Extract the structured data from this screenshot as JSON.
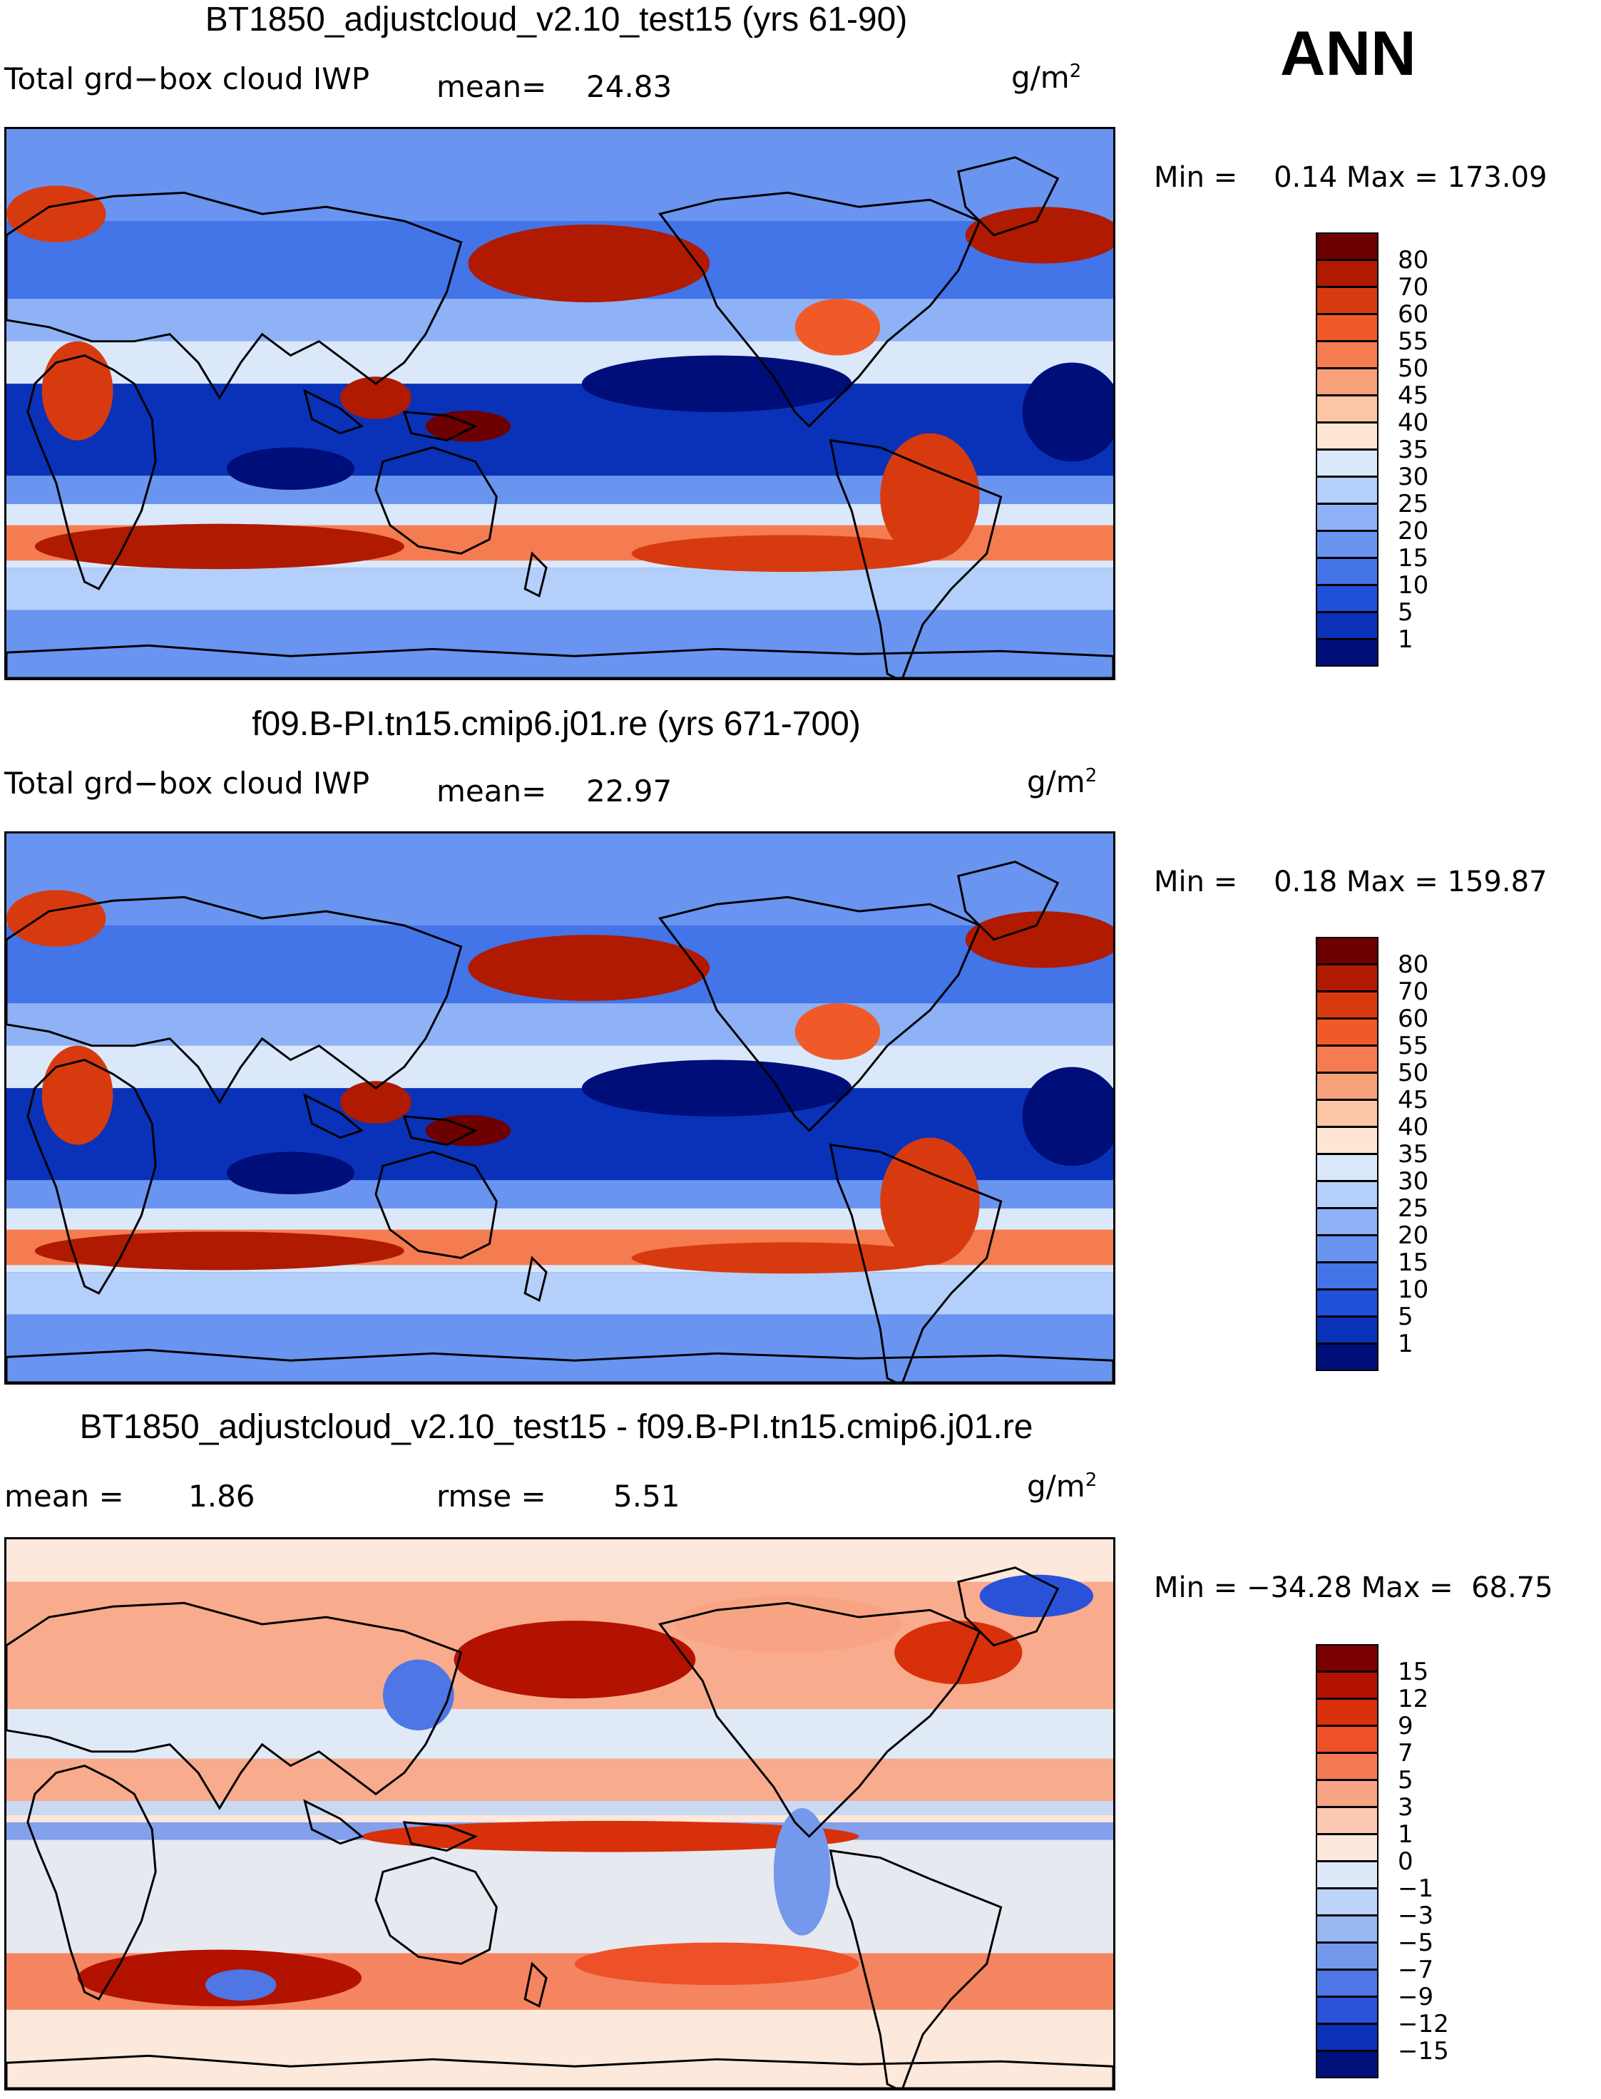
{
  "season": "ANN",
  "colors": {
    "ocean_low": "#0a2fa8",
    "ocean_mid": "#2d62e0",
    "pale": "#fde5d6",
    "warm": "#e8522a",
    "hot": "#8b0a0a",
    "coast": "#000000"
  },
  "icons": [
    "coastline-map"
  ],
  "chart_data": [
    {
      "type": "heatmap",
      "title": "BT1850_adjustcloud_v2.10_test15 (yrs 61-90)",
      "variable": "Total grd−box cloud IWP",
      "mean_label": "mean=",
      "mean_value": "24.83",
      "units": "g/m",
      "units_exp": "2",
      "min_label": "Min =",
      "min_value": "0.14",
      "max_label": "Max =",
      "max_value": "173.09",
      "colorbar": {
        "labels": [
          "80",
          "70",
          "60",
          "55",
          "50",
          "45",
          "40",
          "35",
          "30",
          "25",
          "20",
          "15",
          "10",
          "5",
          "1"
        ],
        "colors": [
          "#6d0000",
          "#b01a00",
          "#d83a10",
          "#f05a28",
          "#f47c50",
          "#f7a27a",
          "#fbc6a6",
          "#fde6d4",
          "#dae8fa",
          "#b4cffa",
          "#8fb2f6",
          "#6994f0",
          "#4374e8",
          "#2050da",
          "#0a32b8",
          "#000e7a"
        ]
      }
    },
    {
      "type": "heatmap",
      "title": "f09.B-PI.tn15.cmip6.j01.re (yrs 671-700)",
      "variable": "Total grd−box cloud IWP",
      "mean_label": "mean=",
      "mean_value": "22.97",
      "units": "g/m",
      "units_exp": "2",
      "min_label": "Min =",
      "min_value": "0.18",
      "max_label": "Max =",
      "max_value": "159.87",
      "colorbar": {
        "labels": [
          "80",
          "70",
          "60",
          "55",
          "50",
          "45",
          "40",
          "35",
          "30",
          "25",
          "20",
          "15",
          "10",
          "5",
          "1"
        ],
        "colors": [
          "#6d0000",
          "#b01a00",
          "#d83a10",
          "#f05a28",
          "#f47c50",
          "#f7a27a",
          "#fbc6a6",
          "#fde6d4",
          "#dae8fa",
          "#b4cffa",
          "#8fb2f6",
          "#6994f0",
          "#4374e8",
          "#2050da",
          "#0a32b8",
          "#000e7a"
        ]
      }
    },
    {
      "type": "heatmap",
      "title": "BT1850_adjustcloud_v2.10_test15 - f09.B-PI.tn15.cmip6.j01.re",
      "mean_label": "mean =",
      "mean_value": "1.86",
      "rmse_label": "rmse =",
      "rmse_value": "5.51",
      "units": "g/m",
      "units_exp": "2",
      "min_label": "Min =",
      "min_value": "−34.28",
      "max_label": "Max =",
      "max_value": "68.75",
      "colorbar": {
        "labels": [
          "15",
          "12",
          "9",
          "7",
          "5",
          "3",
          "1",
          "0",
          "−1",
          "−3",
          "−5",
          "−7",
          "−9",
          "−12",
          "−15"
        ],
        "colors": [
          "#7a0000",
          "#b31200",
          "#d8300a",
          "#ee5028",
          "#f37a52",
          "#f8a484",
          "#fcc8b2",
          "#fde8dc",
          "#dde9f8",
          "#bcd4f8",
          "#98b8f2",
          "#7498ec",
          "#4e76e4",
          "#2a52d8",
          "#0c30b8",
          "#00107a"
        ]
      }
    }
  ]
}
